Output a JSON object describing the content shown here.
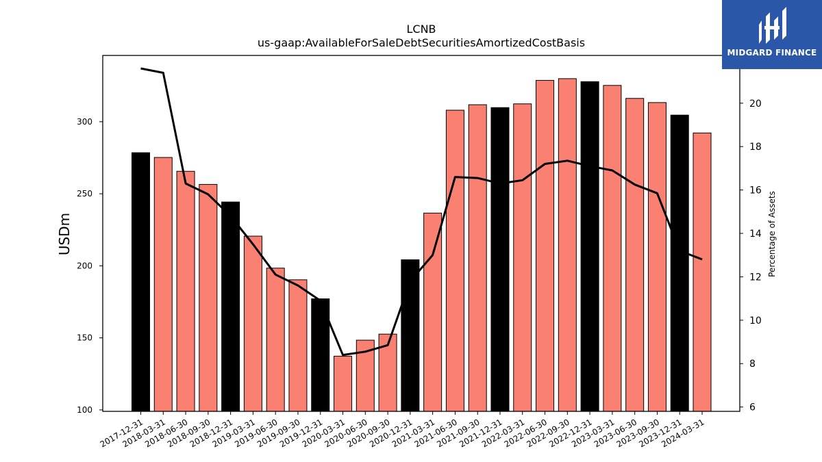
{
  "colors": {
    "bar_q4": "#000000",
    "bar_other": "#fa8072",
    "line": "#000000",
    "logo_bg": "#2b57a8"
  },
  "logo": {
    "text": "MIDGARD FINANCE",
    "icon": "midgard-logo-icon"
  },
  "chart_data": {
    "type": "bar",
    "title": "LCNB",
    "subtitle": "us-gaap:AvailableForSaleDebtSecuritiesAmortizedCostBasis",
    "ylabel": "USDm",
    "y2label": "Percentage of Assets",
    "ylim": [
      99,
      346
    ],
    "y2lim": [
      5.8,
      22.2
    ],
    "yticks": [
      100,
      150,
      200,
      250,
      300
    ],
    "y2ticks": [
      6,
      8,
      10,
      12,
      14,
      16,
      18,
      20
    ],
    "categories": [
      "2017-12-31",
      "2018-03-31",
      "2018-06-30",
      "2018-09-30",
      "2018-12-31",
      "2019-03-31",
      "2019-06-30",
      "2019-09-30",
      "2019-12-31",
      "2020-03-31",
      "2020-06-30",
      "2020-09-30",
      "2020-12-31",
      "2021-03-31",
      "2021-06-30",
      "2021-09-30",
      "2021-12-31",
      "2022-03-31",
      "2022-06-30",
      "2022-09-30",
      "2022-12-31",
      "2023-03-31",
      "2023-06-30",
      "2023-09-30",
      "2023-12-31",
      "2024-03-31"
    ],
    "series": [
      {
        "type": "bar",
        "values": [
          278.5,
          275.2,
          265.6,
          256.5,
          244.3,
          220.6,
          198.4,
          190.3,
          177.1,
          137.3,
          148.4,
          152.6,
          204.2,
          236.6,
          308.0,
          311.8,
          309.8,
          312.4,
          328.7,
          329.9,
          327.8,
          325.2,
          316.2,
          313.3,
          304.6,
          292.2
        ],
        "q4": [
          true,
          false,
          false,
          false,
          true,
          false,
          false,
          false,
          true,
          false,
          false,
          false,
          true,
          false,
          false,
          false,
          true,
          false,
          false,
          false,
          true,
          false,
          false,
          false,
          true,
          false
        ]
      },
      {
        "type": "line",
        "axis": "right",
        "values": [
          21.6,
          21.4,
          16.3,
          15.8,
          14.8,
          13.5,
          12.1,
          11.6,
          10.9,
          8.4,
          8.55,
          8.85,
          11.8,
          13.0,
          16.6,
          16.55,
          16.3,
          16.45,
          17.2,
          17.35,
          17.1,
          16.9,
          16.25,
          15.85,
          13.2,
          12.8
        ]
      }
    ]
  }
}
